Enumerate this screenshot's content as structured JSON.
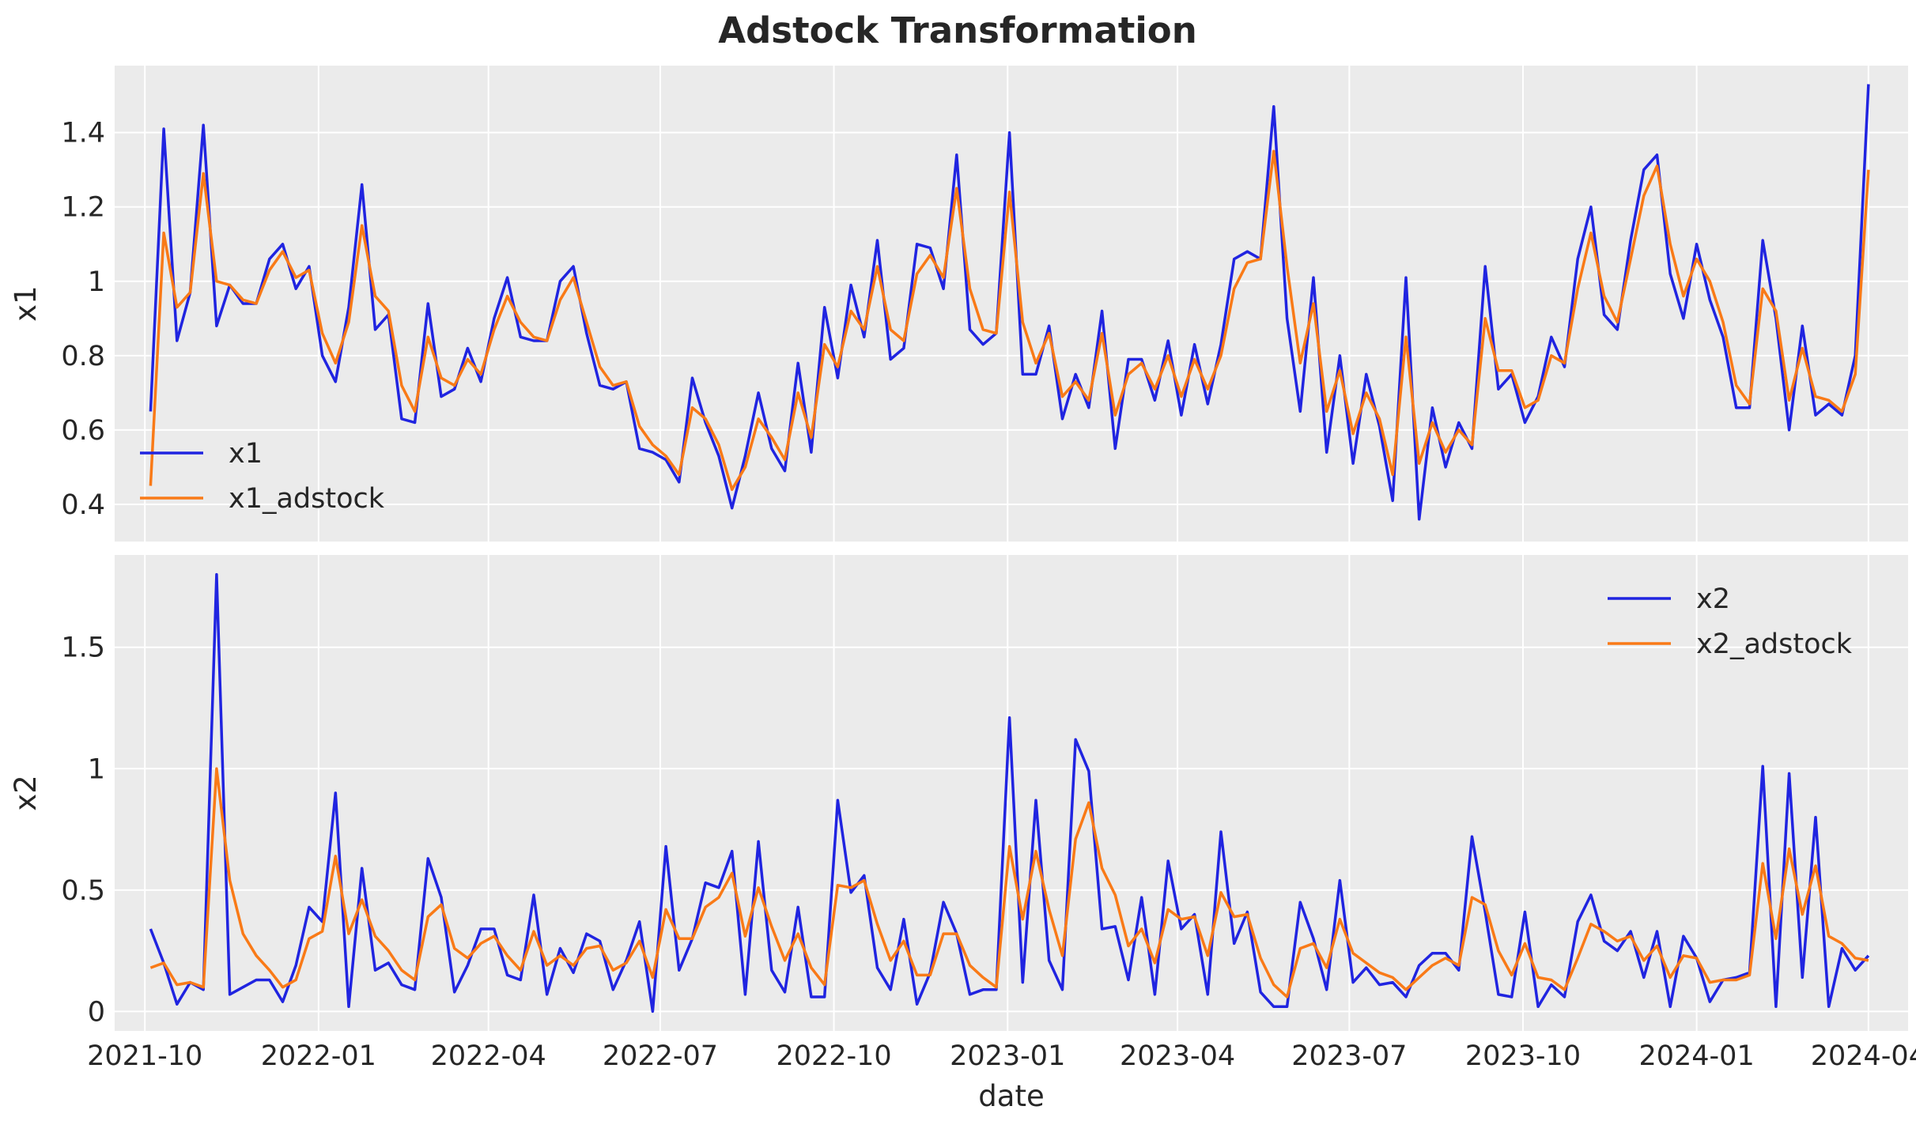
{
  "chart_data": [
    {
      "type": "line",
      "title": "Adstock Transformation",
      "xlabel": "",
      "ylabel": "x1",
      "ylim": [
        0.3,
        1.58
      ],
      "yticks": [
        0.4,
        0.6,
        0.8,
        1.0,
        1.2,
        1.4
      ],
      "grid": true,
      "legend_position": "lower-left",
      "x_start": "2021-10-04",
      "x_step_days": 7,
      "series": [
        {
          "name": "x1",
          "color": "#2024e0",
          "values": [
            0.65,
            1.41,
            0.84,
            0.97,
            1.42,
            0.88,
            0.99,
            0.94,
            0.94,
            1.06,
            1.1,
            0.98,
            1.04,
            0.8,
            0.73,
            0.93,
            1.26,
            0.87,
            0.91,
            0.63,
            0.62,
            0.94,
            0.69,
            0.71,
            0.82,
            0.73,
            0.9,
            1.01,
            0.85,
            0.84,
            0.84,
            1.0,
            1.04,
            0.86,
            0.72,
            0.71,
            0.73,
            0.55,
            0.54,
            0.52,
            0.46,
            0.74,
            0.62,
            0.53,
            0.39,
            0.53,
            0.7,
            0.55,
            0.49,
            0.78,
            0.54,
            0.93,
            0.74,
            0.99,
            0.85,
            1.11,
            0.79,
            0.82,
            1.1,
            1.09,
            0.98,
            1.34,
            0.87,
            0.83,
            0.86,
            1.4,
            0.75,
            0.75,
            0.88,
            0.63,
            0.75,
            0.66,
            0.92,
            0.55,
            0.79,
            0.79,
            0.68,
            0.84,
            0.64,
            0.83,
            0.67,
            0.83,
            1.06,
            1.08,
            1.06,
            1.47,
            0.9,
            0.65,
            1.01,
            0.54,
            0.8,
            0.51,
            0.75,
            0.61,
            0.41,
            1.01,
            0.36,
            0.66,
            0.5,
            0.62,
            0.55,
            1.04,
            0.71,
            0.75,
            0.62,
            0.69,
            0.85,
            0.77,
            1.06,
            1.2,
            0.91,
            0.87,
            1.11,
            1.3,
            1.34,
            1.02,
            0.9,
            1.1,
            0.95,
            0.85,
            0.66,
            0.66,
            1.11,
            0.9,
            0.6,
            0.88,
            0.64,
            0.67,
            0.64,
            0.8,
            1.53
          ]
        },
        {
          "name": "x1_adstock",
          "color": "#f97a17",
          "values": [
            0.45,
            1.13,
            0.93,
            0.97,
            1.29,
            1.0,
            0.99,
            0.95,
            0.94,
            1.03,
            1.08,
            1.01,
            1.03,
            0.86,
            0.78,
            0.89,
            1.15,
            0.96,
            0.92,
            0.72,
            0.65,
            0.85,
            0.74,
            0.72,
            0.79,
            0.75,
            0.87,
            0.96,
            0.89,
            0.85,
            0.84,
            0.95,
            1.01,
            0.89,
            0.77,
            0.72,
            0.73,
            0.61,
            0.56,
            0.53,
            0.48,
            0.66,
            0.63,
            0.56,
            0.44,
            0.5,
            0.63,
            0.58,
            0.52,
            0.7,
            0.58,
            0.83,
            0.77,
            0.92,
            0.87,
            1.04,
            0.87,
            0.84,
            1.02,
            1.07,
            1.01,
            1.25,
            0.98,
            0.87,
            0.86,
            1.24,
            0.89,
            0.78,
            0.86,
            0.69,
            0.73,
            0.68,
            0.86,
            0.64,
            0.75,
            0.78,
            0.71,
            0.8,
            0.69,
            0.79,
            0.71,
            0.8,
            0.98,
            1.05,
            1.06,
            1.35,
            1.04,
            0.78,
            0.94,
            0.65,
            0.76,
            0.59,
            0.7,
            0.63,
            0.48,
            0.85,
            0.51,
            0.62,
            0.54,
            0.6,
            0.56,
            0.9,
            0.76,
            0.76,
            0.66,
            0.68,
            0.8,
            0.78,
            0.98,
            1.13,
            0.96,
            0.89,
            1.06,
            1.23,
            1.31,
            1.1,
            0.96,
            1.06,
            1.0,
            0.89,
            0.72,
            0.67,
            0.98,
            0.92,
            0.68,
            0.82,
            0.69,
            0.68,
            0.65,
            0.75,
            1.3
          ]
        }
      ]
    },
    {
      "type": "line",
      "xlabel": "date",
      "ylabel": "x2",
      "ylim": [
        -0.08,
        1.88
      ],
      "yticks": [
        0.0,
        0.5,
        1.0,
        1.5
      ],
      "grid": true,
      "legend_position": "upper-right",
      "x_start": "2021-10-04",
      "x_step_days": 7,
      "x_range": [
        "2021-09-15",
        "2024-04-22"
      ],
      "x_ticks": [
        "2021-10-01",
        "2022-01-01",
        "2022-04-01",
        "2022-07-01",
        "2022-10-01",
        "2023-01-01",
        "2023-04-01",
        "2023-07-01",
        "2023-10-01",
        "2024-01-01",
        "2024-04-01"
      ],
      "x_tick_labels": [
        "2021-10",
        "2022-01",
        "2022-04",
        "2022-07",
        "2022-10",
        "2023-01",
        "2023-04",
        "2023-07",
        "2023-10",
        "2024-01",
        "2024-04"
      ],
      "series": [
        {
          "name": "x2",
          "color": "#2024e0",
          "values": [
            0.34,
            0.2,
            0.03,
            0.12,
            0.09,
            1.8,
            0.07,
            0.1,
            0.13,
            0.13,
            0.04,
            0.19,
            0.43,
            0.37,
            0.9,
            0.02,
            0.59,
            0.17,
            0.2,
            0.11,
            0.09,
            0.63,
            0.47,
            0.08,
            0.19,
            0.34,
            0.34,
            0.15,
            0.13,
            0.48,
            0.07,
            0.26,
            0.16,
            0.32,
            0.29,
            0.09,
            0.21,
            0.37,
            0.0,
            0.68,
            0.17,
            0.3,
            0.53,
            0.51,
            0.66,
            0.07,
            0.7,
            0.17,
            0.08,
            0.43,
            0.06,
            0.06,
            0.87,
            0.49,
            0.56,
            0.18,
            0.09,
            0.38,
            0.03,
            0.16,
            0.45,
            0.32,
            0.07,
            0.09,
            0.09,
            1.21,
            0.12,
            0.87,
            0.21,
            0.09,
            1.12,
            0.99,
            0.34,
            0.35,
            0.13,
            0.47,
            0.07,
            0.62,
            0.34,
            0.4,
            0.07,
            0.74,
            0.28,
            0.41,
            0.08,
            0.02,
            0.02,
            0.45,
            0.3,
            0.09,
            0.54,
            0.12,
            0.18,
            0.11,
            0.12,
            0.06,
            0.19,
            0.24,
            0.24,
            0.17,
            0.72,
            0.41,
            0.07,
            0.06,
            0.41,
            0.02,
            0.11,
            0.06,
            0.37,
            0.48,
            0.29,
            0.25,
            0.33,
            0.14,
            0.33,
            0.02,
            0.31,
            0.22,
            0.04,
            0.13,
            0.14,
            0.16,
            1.01,
            0.02,
            0.98,
            0.14,
            0.8,
            0.02,
            0.26,
            0.17,
            0.23
          ]
        },
        {
          "name": "x2_adstock",
          "color": "#f97a17",
          "values": [
            0.18,
            0.2,
            0.11,
            0.12,
            0.1,
            1.0,
            0.54,
            0.32,
            0.23,
            0.17,
            0.1,
            0.13,
            0.3,
            0.33,
            0.64,
            0.32,
            0.46,
            0.31,
            0.25,
            0.17,
            0.13,
            0.39,
            0.44,
            0.26,
            0.22,
            0.28,
            0.31,
            0.23,
            0.17,
            0.33,
            0.19,
            0.23,
            0.19,
            0.26,
            0.27,
            0.17,
            0.2,
            0.29,
            0.14,
            0.42,
            0.3,
            0.3,
            0.43,
            0.47,
            0.57,
            0.31,
            0.51,
            0.35,
            0.21,
            0.32,
            0.18,
            0.11,
            0.52,
            0.51,
            0.54,
            0.36,
            0.21,
            0.29,
            0.15,
            0.15,
            0.32,
            0.32,
            0.19,
            0.14,
            0.1,
            0.68,
            0.38,
            0.66,
            0.42,
            0.23,
            0.71,
            0.86,
            0.59,
            0.48,
            0.27,
            0.34,
            0.2,
            0.42,
            0.38,
            0.39,
            0.23,
            0.49,
            0.39,
            0.4,
            0.22,
            0.11,
            0.06,
            0.26,
            0.28,
            0.18,
            0.38,
            0.24,
            0.2,
            0.16,
            0.14,
            0.09,
            0.14,
            0.19,
            0.22,
            0.19,
            0.47,
            0.44,
            0.25,
            0.15,
            0.28,
            0.14,
            0.13,
            0.09,
            0.22,
            0.36,
            0.33,
            0.29,
            0.31,
            0.21,
            0.27,
            0.14,
            0.23,
            0.22,
            0.12,
            0.13,
            0.13,
            0.15,
            0.61,
            0.3,
            0.67,
            0.4,
            0.6,
            0.31,
            0.28,
            0.22,
            0.21
          ]
        }
      ]
    }
  ]
}
